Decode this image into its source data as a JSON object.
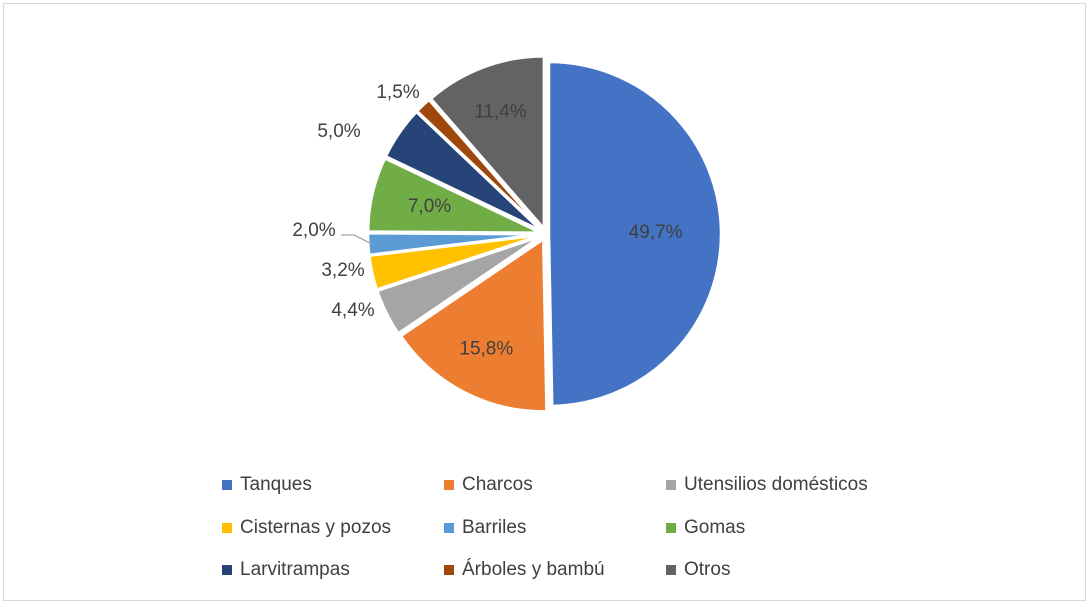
{
  "chart_data": {
    "type": "pie",
    "title": "",
    "slices": [
      {
        "label": "Tanques",
        "value": 49.7,
        "value_label": "49,7%",
        "color": "#4472C4"
      },
      {
        "label": "Charcos",
        "value": 15.8,
        "value_label": "15,8%",
        "color": "#ED7D31"
      },
      {
        "label": "Utensilios domésticos",
        "value": 4.4,
        "value_label": "4,4%",
        "color": "#A5A5A5"
      },
      {
        "label": "Cisternas y pozos",
        "value": 3.2,
        "value_label": "3,2%",
        "color": "#FFC000"
      },
      {
        "label": "Barriles",
        "value": 2.0,
        "value_label": "2,0%",
        "color": "#5B9BD5"
      },
      {
        "label": "Gomas",
        "value": 7.0,
        "value_label": "7,0%",
        "color": "#70AD47"
      },
      {
        "label": "Larvitrampas",
        "value": 5.0,
        "value_label": "5,0%",
        "color": "#264478"
      },
      {
        "label": "Árboles y bambú",
        "value": 1.5,
        "value_label": "1,5%",
        "color": "#9E480E"
      },
      {
        "label": "Otros",
        "value": 11.4,
        "value_label": "11,4%",
        "color": "#636363"
      }
    ],
    "legend_position": "bottom",
    "legend_columns": 3
  }
}
